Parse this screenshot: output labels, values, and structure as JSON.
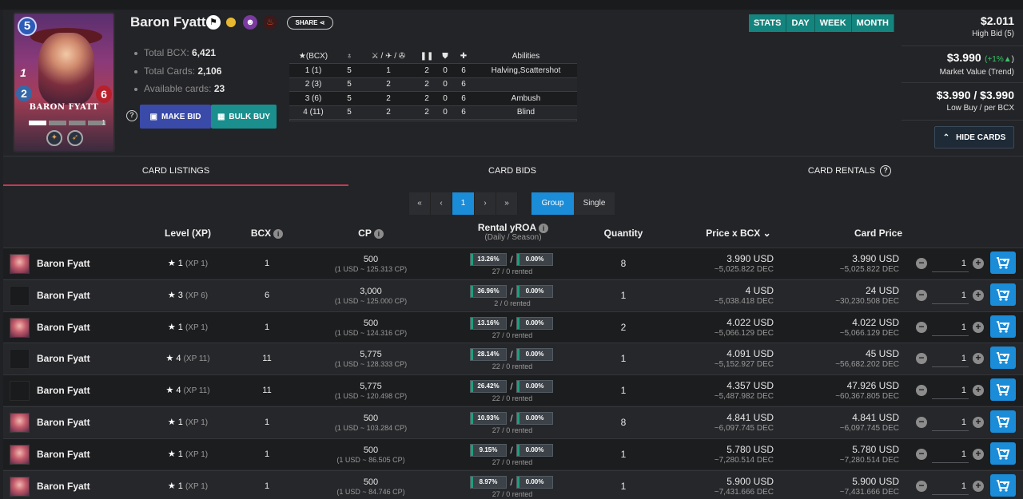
{
  "card": {
    "name": "Baron Fyatt",
    "mana": "5",
    "speed": "1",
    "armor": "2",
    "health": "6",
    "level_indicator": "1",
    "card_label": "BARON FYATT",
    "share_label": "SHARE",
    "info": [
      {
        "label": "Total BCX:",
        "value": "6,421"
      },
      {
        "label": "Total Cards:",
        "value": "2,106"
      },
      {
        "label": "Available cards:",
        "value": "23"
      }
    ],
    "make_bid_label": "MAKE BID",
    "bulk_buy_label": "BULK BUY"
  },
  "stats_table": {
    "headers": [
      "(BCX)",
      "",
      "/ /",
      "",
      "",
      "",
      "Abilities"
    ],
    "rows": [
      [
        "1 (1)",
        "5",
        "1",
        "2",
        "0",
        "6",
        "Halving,Scattershot"
      ],
      [
        "2 (3)",
        "5",
        "2",
        "2",
        "0",
        "6",
        ""
      ],
      [
        "3 (6)",
        "5",
        "2",
        "2",
        "0",
        "6",
        "Ambush"
      ],
      [
        "4 (11)",
        "5",
        "2",
        "2",
        "0",
        "6",
        "Blind"
      ]
    ]
  },
  "timeframe_tabs": [
    "STATS",
    "DAY",
    "WEEK",
    "MONTH"
  ],
  "prices": {
    "high_bid_value": "$2.011",
    "high_bid_label": "High Bid (5)",
    "market_value": "$3.990",
    "market_trend": "(+1%",
    "market_trend_close": ")",
    "market_label": "Market Value (Trend)",
    "low_buy_value": "$3.990 / $3.990",
    "low_buy_label": "Low Buy / per BCX",
    "hide_cards_label": "HIDE CARDS"
  },
  "tabs": [
    "CARD LISTINGS",
    "CARD BIDS",
    "CARD RENTALS"
  ],
  "pagination": {
    "first": "«",
    "prev": "‹",
    "current": "1",
    "next": "›",
    "last": "»",
    "group": "Group",
    "single": "Single"
  },
  "columns": {
    "level": "Level (XP)",
    "bcx": "BCX",
    "cp": "CP",
    "rental": "Rental yROA",
    "rental_sub": "(Daily / Season)",
    "quantity": "Quantity",
    "price_bcx": "Price x BCX",
    "card_price": "Card Price"
  },
  "listings": [
    {
      "name": "Baron Fyatt",
      "avatar": true,
      "level": "1",
      "xp": "(XP 1)",
      "bcx": "1",
      "cp": "500",
      "cp_sub": "(1 USD ~ 125.313 CP)",
      "daily": "13.26%",
      "season": "0.00%",
      "rented": "27 / 0 rented",
      "qty": "8",
      "pbcx": "3.990 USD",
      "pbcx_dec": "~5,025.822 DEC",
      "price": "3.990 USD",
      "price_dec": "~5,025.822 DEC",
      "buy_qty": "1"
    },
    {
      "name": "Baron Fyatt",
      "avatar": false,
      "level": "3",
      "xp": "(XP 6)",
      "bcx": "6",
      "cp": "3,000",
      "cp_sub": "(1 USD ~ 125.000 CP)",
      "daily": "36.96%",
      "season": "0.00%",
      "rented": "2 / 0 rented",
      "qty": "1",
      "pbcx": "4 USD",
      "pbcx_dec": "~5,038.418 DEC",
      "price": "24 USD",
      "price_dec": "~30,230.508 DEC",
      "buy_qty": "1"
    },
    {
      "name": "Baron Fyatt",
      "avatar": true,
      "level": "1",
      "xp": "(XP 1)",
      "bcx": "1",
      "cp": "500",
      "cp_sub": "(1 USD ~ 124.316 CP)",
      "daily": "13.16%",
      "season": "0.00%",
      "rented": "27 / 0 rented",
      "qty": "2",
      "pbcx": "4.022 USD",
      "pbcx_dec": "~5,066.129 DEC",
      "price": "4.022 USD",
      "price_dec": "~5,066.129 DEC",
      "buy_qty": "1"
    },
    {
      "name": "Baron Fyatt",
      "avatar": false,
      "level": "4",
      "xp": "(XP 11)",
      "bcx": "11",
      "cp": "5,775",
      "cp_sub": "(1 USD ~ 128.333 CP)",
      "daily": "28.14%",
      "season": "0.00%",
      "rented": "22 / 0 rented",
      "qty": "1",
      "pbcx": "4.091 USD",
      "pbcx_dec": "~5,152.927 DEC",
      "price": "45 USD",
      "price_dec": "~56,682.202 DEC",
      "buy_qty": "1"
    },
    {
      "name": "Baron Fyatt",
      "avatar": false,
      "level": "4",
      "xp": "(XP 11)",
      "bcx": "11",
      "cp": "5,775",
      "cp_sub": "(1 USD ~ 120.498 CP)",
      "daily": "26.42%",
      "season": "0.00%",
      "rented": "22 / 0 rented",
      "qty": "1",
      "pbcx": "4.357 USD",
      "pbcx_dec": "~5,487.982 DEC",
      "price": "47.926 USD",
      "price_dec": "~60,367.805 DEC",
      "buy_qty": "1"
    },
    {
      "name": "Baron Fyatt",
      "avatar": true,
      "level": "1",
      "xp": "(XP 1)",
      "bcx": "1",
      "cp": "500",
      "cp_sub": "(1 USD ~ 103.284 CP)",
      "daily": "10.93%",
      "season": "0.00%",
      "rented": "27 / 0 rented",
      "qty": "8",
      "pbcx": "4.841 USD",
      "pbcx_dec": "~6,097.745 DEC",
      "price": "4.841 USD",
      "price_dec": "~6,097.745 DEC",
      "buy_qty": "1"
    },
    {
      "name": "Baron Fyatt",
      "avatar": true,
      "level": "1",
      "xp": "(XP 1)",
      "bcx": "1",
      "cp": "500",
      "cp_sub": "(1 USD ~ 86.505 CP)",
      "daily": "9.15%",
      "season": "0.00%",
      "rented": "27 / 0 rented",
      "qty": "1",
      "pbcx": "5.780 USD",
      "pbcx_dec": "~7,280.514 DEC",
      "price": "5.780 USD",
      "price_dec": "~7,280.514 DEC",
      "buy_qty": "1"
    },
    {
      "name": "Baron Fyatt",
      "avatar": true,
      "level": "1",
      "xp": "(XP 1)",
      "bcx": "1",
      "cp": "500",
      "cp_sub": "(1 USD ~ 84.746 CP)",
      "daily": "8.97%",
      "season": "0.00%",
      "rented": "27 / 0 rented",
      "qty": "1",
      "pbcx": "5.900 USD",
      "pbcx_dec": "~7,431.666 DEC",
      "price": "5.900 USD",
      "price_dec": "~7,431.666 DEC",
      "buy_qty": "1"
    }
  ]
}
